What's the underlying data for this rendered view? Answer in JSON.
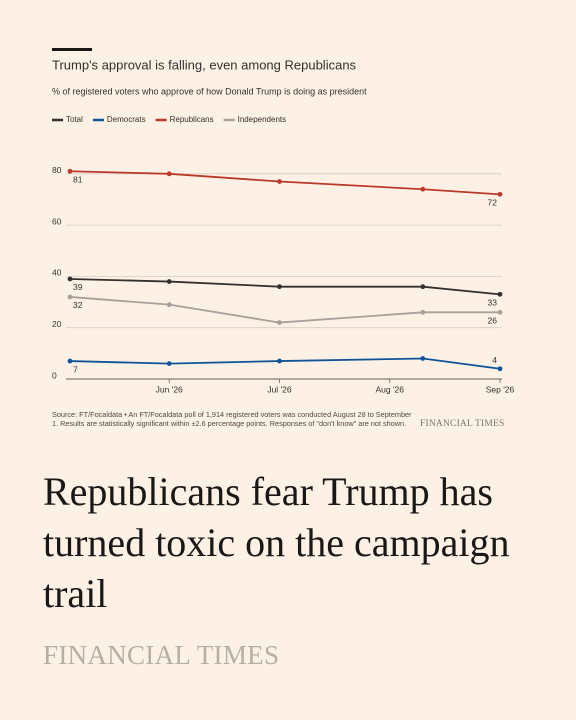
{
  "chart_data": {
    "type": "line",
    "title": "Trump's approval is falling, even among Republicans",
    "subtitle": "% of registered voters who approve of how Donald Trump is doing as president",
    "x": [
      5.1,
      6,
      7,
      8.3,
      9
    ],
    "xlim": [
      5.1,
      9
    ],
    "xticks": [
      {
        "value": 6,
        "label": "Jun '26"
      },
      {
        "value": 7,
        "label": "Jul '26"
      },
      {
        "value": 8,
        "label": "Aug '26"
      },
      {
        "value": 9,
        "label": "Sep '26"
      }
    ],
    "ylim": [
      0,
      85
    ],
    "yticks": [
      0,
      20,
      40,
      60,
      80
    ],
    "grid": true,
    "series": [
      {
        "name": "Total",
        "color": "#33302e",
        "values": [
          39,
          38,
          36,
          36,
          33
        ]
      },
      {
        "name": "Democrats",
        "color": "#0f5499",
        "values": [
          7,
          6,
          7,
          8,
          4
        ]
      },
      {
        "name": "Republicans",
        "color": "#b93a2b",
        "values": [
          81,
          80,
          77,
          74,
          72
        ]
      },
      {
        "name": "Independents",
        "color": "#a7a09b",
        "values": [
          32,
          29,
          22,
          26,
          26
        ]
      }
    ],
    "source": "Source: FT/Focaldata • An FT/Focaldata poll of 1,914 registered voters was conducted August 28 to September 1. Results are statistically significant within ±2.6 percentage points. Responses of \"don't know\" are not shown.",
    "credit": "FINANCIAL TIMES"
  },
  "headline": "Republicans fear Trump has turned toxic on the campaign trail",
  "brand": "FINANCIAL TIMES"
}
